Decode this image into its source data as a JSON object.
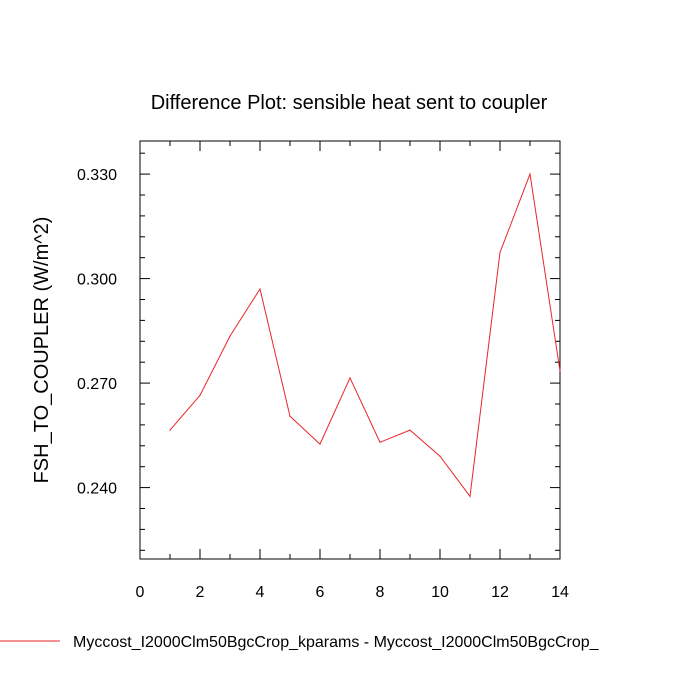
{
  "chart_data": {
    "type": "line",
    "title": "Difference Plot: sensible heat sent to coupler",
    "xlabel": "",
    "ylabel": "FSH_TO_COUPLER  (W/m^2)",
    "xlim": [
      0,
      14
    ],
    "ylim": [
      0.2195,
      0.3395
    ],
    "x_ticks": [
      0,
      2,
      4,
      6,
      8,
      10,
      12,
      14
    ],
    "x_tick_labels": [
      "0",
      "2",
      "4",
      "6",
      "8",
      "10",
      "12",
      "14"
    ],
    "y_ticks": [
      0.24,
      0.27,
      0.3,
      0.33
    ],
    "y_tick_labels": [
      "0.240",
      "0.270",
      "0.300",
      "0.330"
    ],
    "grid": false,
    "legend_position": "bottom",
    "series": [
      {
        "name": "Myccost_I2000Clm50BgcCrop_kparams - Myccost_I2000Clm50BgcCrop_",
        "color": "#e8262a",
        "x": [
          1,
          2,
          3,
          4,
          5,
          6,
          7,
          8,
          9,
          10,
          11,
          12,
          13,
          14
        ],
        "values": [
          0.2565,
          0.2665,
          0.2835,
          0.297,
          0.2605,
          0.2525,
          0.2715,
          0.253,
          0.2565,
          0.249,
          0.2375,
          0.3075,
          0.33,
          0.2735
        ]
      }
    ]
  }
}
